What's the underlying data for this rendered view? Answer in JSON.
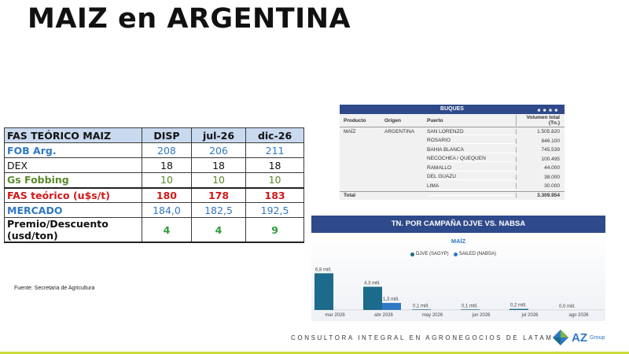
{
  "title": "MAIZ en ARGENTINA",
  "fas_table": {
    "header": [
      "FAS TEÓRICO MAIZ",
      "DISP",
      "jul-26",
      "dic-26"
    ],
    "rows": [
      {
        "label": "FOB Arg.",
        "values": [
          "208",
          "206",
          "211"
        ]
      },
      {
        "label": "DEX",
        "values": [
          "18",
          "18",
          "18"
        ]
      },
      {
        "label": "Gs Fobbing",
        "values": [
          "10",
          "10",
          "10"
        ]
      },
      {
        "label": "FAS teórico (u$s/t)",
        "values": [
          "180",
          "178",
          "183"
        ]
      },
      {
        "label": "MERCADO",
        "values": [
          "184,0",
          "182,5",
          "192,5"
        ]
      },
      {
        "label": "Premio/Descuento (usd/ton)",
        "values": [
          "4",
          "4",
          "9"
        ]
      }
    ]
  },
  "source": "Fuente: Secretaria de Agricultura",
  "buques": {
    "title": "BUQUES",
    "header_dots": "■ ■ ■ ■",
    "columns": [
      "Producto",
      "Origen",
      "Puerto",
      "Volumen total (Tn.)"
    ],
    "product": "MAÍZ",
    "origin": "ARGENTINA",
    "rows": [
      {
        "port": "SAN LORENZO",
        "volume": "1.505.820"
      },
      {
        "port": "ROSARIO",
        "volume": "846.100"
      },
      {
        "port": "BAHIA BLANCA",
        "volume": "745.539"
      },
      {
        "port": "NECOCHEA / QUEQUEN",
        "volume": "100.495"
      },
      {
        "port": "RAMALLO",
        "volume": "44.000"
      },
      {
        "port": "DEL GUAZU",
        "volume": "38.000"
      },
      {
        "port": "LIMA",
        "volume": "30.000"
      }
    ],
    "total_label": "Total",
    "total_value": "3.309.954"
  },
  "campaign_header": "TN. POR CAMPAÑA DJVE VS. NABSA",
  "chart_data": {
    "type": "bar",
    "title": "MAÍZ",
    "categories": [
      "mar 2026",
      "abr 2026",
      "may 2026",
      "jun 2026",
      "jul 2026",
      "ago 2026"
    ],
    "series": [
      {
        "name": "DJVE (SAGYP)",
        "values": [
          6.8,
          4.3,
          0.1,
          0.1,
          0.2,
          0.0
        ],
        "labels": [
          "6,8 mill.",
          "4,3 mill.",
          "0,1 mill.",
          "0,1 mill.",
          "0,2 mill.",
          "0,0 mill."
        ],
        "color": "#1c6a8c"
      },
      {
        "name": "SAILED (NABSA)",
        "values": [
          0,
          1.3,
          0,
          0,
          0,
          0
        ],
        "labels": [
          "",
          "1,3 mill.",
          "",
          "",
          "",
          ""
        ],
        "color": "#2f78c4"
      }
    ],
    "ylim": [
      0,
      7
    ]
  },
  "footer": "CONSULTORA INTEGRAL EN AGRONEGOCIOS DE LATAM",
  "logo": {
    "main": "AZ",
    "sub": "Group"
  }
}
